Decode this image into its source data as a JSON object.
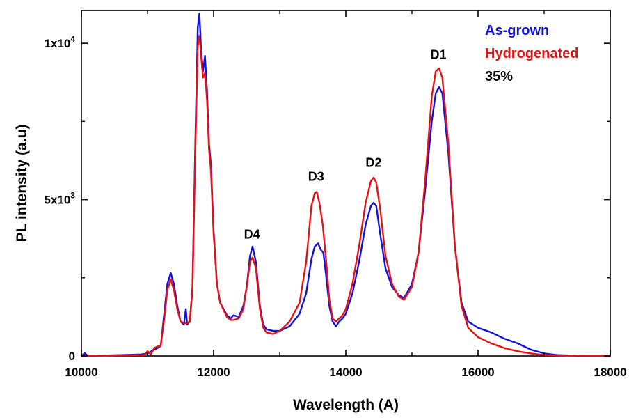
{
  "chart_data": {
    "type": "line",
    "title": "",
    "xlabel": "Wavelength (A)",
    "ylabel": "PL intensity (a.u)",
    "xlim": [
      10000,
      18000
    ],
    "ylim": [
      0,
      11050
    ],
    "grid": false,
    "legend_position": "top-right",
    "x_ticks": [
      {
        "value": 10000,
        "label": "10000"
      },
      {
        "value": 12000,
        "label": "12000"
      },
      {
        "value": 14000,
        "label": "14000"
      },
      {
        "value": 16000,
        "label": "16000"
      },
      {
        "value": 18000,
        "label": "18000"
      }
    ],
    "y_ticks": [
      {
        "value": 0,
        "mantissa": "0",
        "exponent": ""
      },
      {
        "value": 5000,
        "mantissa": "5x10",
        "exponent": "3"
      },
      {
        "value": 10000,
        "mantissa": "1x10",
        "exponent": "4"
      }
    ],
    "legend": {
      "entries": [
        {
          "label": "As-grown",
          "color": "#1010e0"
        },
        {
          "label": "Hydrogenated",
          "color": "#e81010"
        }
      ],
      "note": "35%"
    },
    "annotations": [
      {
        "text": "D1",
        "x": 15400,
        "y": 9500
      },
      {
        "text": "D2",
        "x": 14420,
        "y": 6050
      },
      {
        "text": "D3",
        "x": 13550,
        "y": 5600
      },
      {
        "text": "D4",
        "x": 12580,
        "y": 3750
      }
    ],
    "series": [
      {
        "name": "As-grown",
        "color": "#1010e0",
        "points": [
          [
            10000,
            0
          ],
          [
            10050,
            90
          ],
          [
            10100,
            0
          ],
          [
            10600,
            30
          ],
          [
            10900,
            50
          ],
          [
            11000,
            80
          ],
          [
            11100,
            200
          ],
          [
            11150,
            250
          ],
          [
            11200,
            320
          ],
          [
            11260,
            1500
          ],
          [
            11300,
            2300
          ],
          [
            11350,
            2650
          ],
          [
            11400,
            2300
          ],
          [
            11450,
            1600
          ],
          [
            11500,
            1100
          ],
          [
            11550,
            1000
          ],
          [
            11580,
            1500
          ],
          [
            11600,
            1000
          ],
          [
            11640,
            1100
          ],
          [
            11680,
            2200
          ],
          [
            11720,
            6500
          ],
          [
            11760,
            10500
          ],
          [
            11785,
            10950
          ],
          [
            11810,
            9800
          ],
          [
            11840,
            9100
          ],
          [
            11870,
            9600
          ],
          [
            11900,
            8500
          ],
          [
            11930,
            6800
          ],
          [
            11960,
            6100
          ],
          [
            12000,
            4000
          ],
          [
            12050,
            2300
          ],
          [
            12100,
            1700
          ],
          [
            12200,
            1300
          ],
          [
            12260,
            1200
          ],
          [
            12300,
            1300
          ],
          [
            12380,
            1250
          ],
          [
            12450,
            1600
          ],
          [
            12500,
            2200
          ],
          [
            12550,
            3200
          ],
          [
            12590,
            3500
          ],
          [
            12640,
            3000
          ],
          [
            12700,
            1600
          ],
          [
            12750,
            1000
          ],
          [
            12800,
            850
          ],
          [
            12900,
            800
          ],
          [
            13000,
            800
          ],
          [
            13150,
            950
          ],
          [
            13300,
            1350
          ],
          [
            13400,
            2000
          ],
          [
            13480,
            3100
          ],
          [
            13530,
            3500
          ],
          [
            13580,
            3600
          ],
          [
            13620,
            3400
          ],
          [
            13660,
            3300
          ],
          [
            13700,
            2600
          ],
          [
            13750,
            1600
          ],
          [
            13800,
            1100
          ],
          [
            13850,
            950
          ],
          [
            13900,
            1100
          ],
          [
            13950,
            1200
          ],
          [
            14000,
            1350
          ],
          [
            14100,
            2000
          ],
          [
            14200,
            3000
          ],
          [
            14300,
            4200
          ],
          [
            14380,
            4800
          ],
          [
            14420,
            4900
          ],
          [
            14460,
            4800
          ],
          [
            14520,
            3900
          ],
          [
            14600,
            2800
          ],
          [
            14700,
            2200
          ],
          [
            14800,
            1950
          ],
          [
            14880,
            1850
          ],
          [
            15000,
            2300
          ],
          [
            15100,
            3300
          ],
          [
            15200,
            5300
          ],
          [
            15300,
            7500
          ],
          [
            15360,
            8400
          ],
          [
            15410,
            8600
          ],
          [
            15460,
            8400
          ],
          [
            15550,
            6500
          ],
          [
            15650,
            3500
          ],
          [
            15750,
            1700
          ],
          [
            15850,
            1100
          ],
          [
            16000,
            900
          ],
          [
            16200,
            750
          ],
          [
            16400,
            550
          ],
          [
            16600,
            400
          ],
          [
            16800,
            200
          ],
          [
            17000,
            80
          ],
          [
            17200,
            30
          ],
          [
            17500,
            10
          ],
          [
            18000,
            0
          ]
        ]
      },
      {
        "name": "Hydrogenated",
        "color": "#e81010",
        "points": [
          [
            10000,
            0
          ],
          [
            10500,
            20
          ],
          [
            10950,
            30
          ],
          [
            11000,
            150
          ],
          [
            11050,
            50
          ],
          [
            11100,
            250
          ],
          [
            11150,
            300
          ],
          [
            11200,
            320
          ],
          [
            11260,
            1300
          ],
          [
            11300,
            2100
          ],
          [
            11350,
            2450
          ],
          [
            11400,
            2100
          ],
          [
            11450,
            1500
          ],
          [
            11500,
            1100
          ],
          [
            11550,
            1050
          ],
          [
            11600,
            1050
          ],
          [
            11640,
            1100
          ],
          [
            11680,
            2100
          ],
          [
            11720,
            6200
          ],
          [
            11760,
            9900
          ],
          [
            11785,
            10250
          ],
          [
            11810,
            9600
          ],
          [
            11840,
            8900
          ],
          [
            11870,
            9050
          ],
          [
            11900,
            8200
          ],
          [
            11930,
            6600
          ],
          [
            11960,
            5900
          ],
          [
            12000,
            3900
          ],
          [
            12050,
            2300
          ],
          [
            12100,
            1700
          ],
          [
            12200,
            1250
          ],
          [
            12260,
            1150
          ],
          [
            12300,
            1150
          ],
          [
            12380,
            1200
          ],
          [
            12450,
            1500
          ],
          [
            12500,
            2200
          ],
          [
            12550,
            3000
          ],
          [
            12590,
            3150
          ],
          [
            12640,
            2800
          ],
          [
            12700,
            1500
          ],
          [
            12750,
            900
          ],
          [
            12800,
            750
          ],
          [
            12900,
            700
          ],
          [
            13000,
            800
          ],
          [
            13150,
            1100
          ],
          [
            13300,
            1700
          ],
          [
            13400,
            3000
          ],
          [
            13480,
            4800
          ],
          [
            13530,
            5200
          ],
          [
            13560,
            5250
          ],
          [
            13600,
            4900
          ],
          [
            13650,
            4200
          ],
          [
            13700,
            3100
          ],
          [
            13750,
            1800
          ],
          [
            13800,
            1200
          ],
          [
            13850,
            1100
          ],
          [
            13900,
            1200
          ],
          [
            13950,
            1300
          ],
          [
            14000,
            1500
          ],
          [
            14100,
            2300
          ],
          [
            14200,
            3500
          ],
          [
            14300,
            4900
          ],
          [
            14380,
            5600
          ],
          [
            14420,
            5700
          ],
          [
            14460,
            5550
          ],
          [
            14520,
            4700
          ],
          [
            14600,
            3200
          ],
          [
            14700,
            2300
          ],
          [
            14800,
            1900
          ],
          [
            14880,
            1800
          ],
          [
            15000,
            2200
          ],
          [
            15100,
            3300
          ],
          [
            15200,
            5600
          ],
          [
            15300,
            8300
          ],
          [
            15360,
            9100
          ],
          [
            15410,
            9200
          ],
          [
            15460,
            8900
          ],
          [
            15550,
            6800
          ],
          [
            15650,
            3500
          ],
          [
            15750,
            1600
          ],
          [
            15850,
            900
          ],
          [
            16000,
            600
          ],
          [
            16200,
            400
          ],
          [
            16400,
            250
          ],
          [
            16600,
            150
          ],
          [
            16800,
            80
          ],
          [
            17000,
            30
          ],
          [
            17500,
            10
          ],
          [
            18000,
            0
          ]
        ]
      }
    ]
  }
}
